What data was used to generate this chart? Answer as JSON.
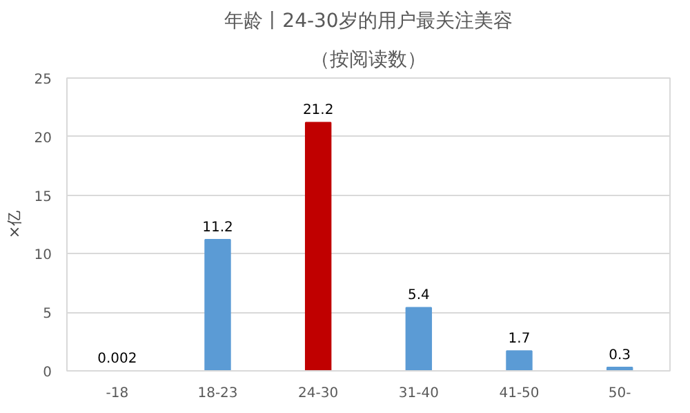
{
  "chart_data": {
    "type": "bar",
    "title": "年龄丨24-30岁的用户最关注美容",
    "subtitle": "（按阅读数）",
    "ylabel": "×亿",
    "categories": [
      "-18",
      "18-23",
      "24-30",
      "31-40",
      "41-50",
      "50-"
    ],
    "values": [
      0.002,
      11.2,
      21.2,
      5.4,
      1.7,
      0.3
    ],
    "colors": [
      "#5b9bd5",
      "#5b9bd5",
      "#c00000",
      "#5b9bd5",
      "#5b9bd5",
      "#5b9bd5"
    ],
    "ylim": [
      0,
      25
    ],
    "yticks": [
      0,
      5,
      10,
      15,
      20,
      25
    ],
    "grid": "y",
    "data_labels": true
  }
}
